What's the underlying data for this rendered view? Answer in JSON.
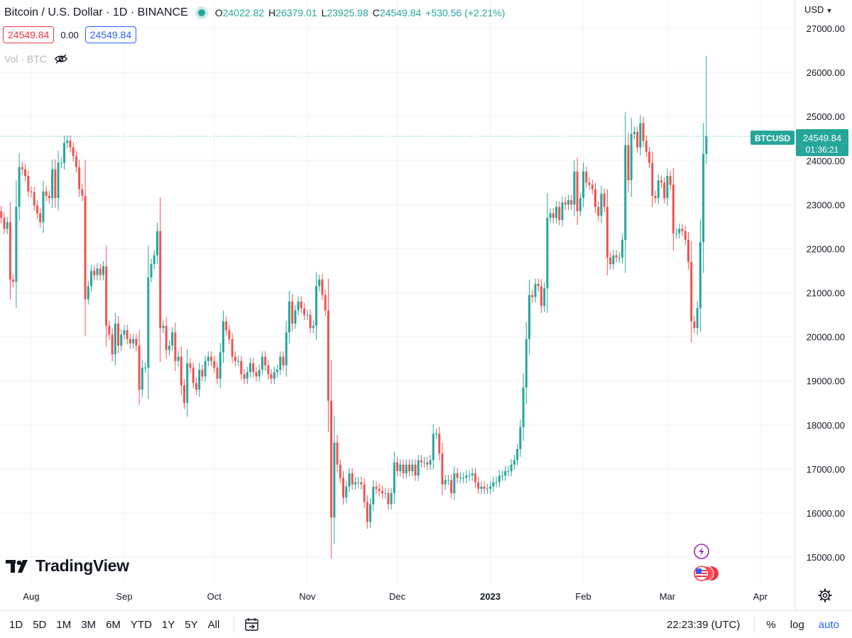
{
  "header": {
    "title": "Bitcoin / U.S. Dollar · 1D · BINANCE",
    "open_label": "O",
    "open": "24022.82",
    "high_label": "H",
    "high": "26379.01",
    "low_label": "L",
    "low": "23925.98",
    "close_label": "C",
    "close": "24549.84",
    "change": "+530.56 (+2.21%)",
    "sell_price": "24549.84",
    "spread": "0.00",
    "buy_price": "24549.84",
    "volume_label": "Vol · BTC",
    "currency": "USD"
  },
  "price_tag": {
    "symbol": "BTCUSD",
    "price": "24549.84",
    "countdown": "01:36:21"
  },
  "logo": "TradingView",
  "bottom_bar": {
    "ranges": [
      "1D",
      "5D",
      "1M",
      "3M",
      "6M",
      "YTD",
      "1Y",
      "5Y",
      "All"
    ],
    "time": "22:23:39 (UTC)",
    "percent": "%",
    "log": "log",
    "auto": "auto"
  },
  "colors": {
    "up": "#26a69a",
    "down": "#ef5350",
    "grid": "#f0f3fa",
    "text": "#131722",
    "accent": "#2962ff"
  },
  "chart_data": {
    "type": "candlestick",
    "title": "Bitcoin / U.S. Dollar · 1D · BINANCE",
    "ylim": [
      15000,
      27000
    ],
    "y_ticks": [
      "27000.00",
      "26000.00",
      "25000.00",
      "24000.00",
      "23000.00",
      "22000.00",
      "21000.00",
      "20000.00",
      "19000.00",
      "18000.00",
      "17000.00",
      "16000.00",
      "15000.00"
    ],
    "x_ticks": [
      {
        "label": "Aug",
        "date": "2022-08-01"
      },
      {
        "label": "Sep",
        "date": "2022-09-01"
      },
      {
        "label": "Oct",
        "date": "2022-10-01"
      },
      {
        "label": "Nov",
        "date": "2022-11-01"
      },
      {
        "label": "Dec",
        "date": "2022-12-01"
      },
      {
        "label": "2023",
        "date": "2023-01-01"
      },
      {
        "label": "Feb",
        "date": "2023-02-01"
      },
      {
        "label": "Mar",
        "date": "2023-03-01"
      },
      {
        "label": "Apr",
        "date": "2023-04-01"
      }
    ],
    "last_price": 24549.84,
    "grid": true,
    "closes": {
      "2022-07-22": 22700,
      "2022-07-23": 22450,
      "2022-07-24": 22600,
      "2022-07-25": 21300,
      "2022-07-26": 21250,
      "2022-07-27": 22950,
      "2022-07-28": 23850,
      "2022-07-29": 23800,
      "2022-07-30": 23650,
      "2022-07-31": 23300,
      "2022-08-01": 23280,
      "2022-08-02": 22980,
      "2022-08-03": 22800,
      "2022-08-04": 22600,
      "2022-08-05": 23300,
      "2022-08-06": 23200,
      "2022-08-07": 23150,
      "2022-08-08": 23800,
      "2022-08-09": 23150,
      "2022-08-10": 23950,
      "2022-08-11": 23950,
      "2022-08-12": 24400,
      "2022-08-13": 24450,
      "2022-08-14": 24300,
      "2022-08-15": 24100,
      "2022-08-16": 23850,
      "2022-08-17": 23350,
      "2022-08-18": 23200,
      "2022-08-19": 20850,
      "2022-08-20": 21150,
      "2022-08-21": 21500,
      "2022-08-22": 21400,
      "2022-08-23": 21550,
      "2022-08-24": 21400,
      "2022-08-25": 21600,
      "2022-08-26": 20250,
      "2022-08-27": 20050,
      "2022-08-28": 19600,
      "2022-08-29": 20300,
      "2022-08-30": 19800,
      "2022-08-31": 20050,
      "2022-09-01": 20150,
      "2022-09-02": 19950,
      "2022-09-03": 19850,
      "2022-09-04": 19950,
      "2022-09-05": 19800,
      "2022-09-06": 18800,
      "2022-09-07": 19300,
      "2022-09-08": 19300,
      "2022-09-09": 21350,
      "2022-09-10": 21650,
      "2022-09-11": 21850,
      "2022-09-12": 22400,
      "2022-09-13": 20200,
      "2022-09-14": 20250,
      "2022-09-15": 19700,
      "2022-09-16": 19800,
      "2022-09-17": 20100,
      "2022-09-18": 19450,
      "2022-09-19": 19550,
      "2022-09-20": 18900,
      "2022-09-21": 18500,
      "2022-09-22": 19400,
      "2022-09-23": 19300,
      "2022-09-24": 18950,
      "2022-09-25": 18800,
      "2022-09-26": 19250,
      "2022-09-27": 19100,
      "2022-09-28": 19450,
      "2022-09-29": 19550,
      "2022-09-30": 19450,
      "2022-10-01": 19300,
      "2022-10-02": 19050,
      "2022-10-03": 19650,
      "2022-10-04": 20350,
      "2022-10-05": 20150,
      "2022-10-06": 19950,
      "2022-10-07": 19550,
      "2022-10-08": 19450,
      "2022-10-09": 19450,
      "2022-10-10": 19150,
      "2022-10-11": 19050,
      "2022-10-12": 19200,
      "2022-10-13": 19400,
      "2022-10-14": 19200,
      "2022-10-15": 19100,
      "2022-10-16": 19250,
      "2022-10-17": 19550,
      "2022-10-18": 19350,
      "2022-10-19": 19150,
      "2022-10-20": 19050,
      "2022-10-21": 19200,
      "2022-10-22": 19250,
      "2022-10-23": 19550,
      "2022-10-24": 19350,
      "2022-10-25": 20100,
      "2022-10-26": 20800,
      "2022-10-27": 20300,
      "2022-10-28": 20600,
      "2022-10-29": 20800,
      "2022-10-30": 20650,
      "2022-10-31": 20500,
      "2022-11-01": 20500,
      "2022-11-02": 20200,
      "2022-11-03": 20250,
      "2022-11-04": 21150,
      "2022-11-05": 21300,
      "2022-11-06": 20950,
      "2022-11-07": 20600,
      "2022-11-08": 18550,
      "2022-11-09": 15900,
      "2022-11-10": 17600,
      "2022-11-11": 17100,
      "2022-11-12": 16800,
      "2022-11-13": 16350,
      "2022-11-14": 16600,
      "2022-11-15": 16900,
      "2022-11-16": 16650,
      "2022-11-17": 16700,
      "2022-11-18": 16700,
      "2022-11-19": 16650,
      "2022-11-20": 16250,
      "2022-11-21": 15800,
      "2022-11-22": 16200,
      "2022-11-23": 16600,
      "2022-11-24": 16550,
      "2022-11-25": 16500,
      "2022-11-26": 16450,
      "2022-11-27": 16450,
      "2022-11-28": 16200,
      "2022-11-29": 16450,
      "2022-11-30": 17150,
      "2022-12-01": 16950,
      "2022-12-02": 17100,
      "2022-12-03": 16900,
      "2022-12-04": 17100,
      "2022-12-05": 16950,
      "2022-12-06": 17100,
      "2022-12-07": 16850,
      "2022-12-08": 17200,
      "2022-12-09": 17150,
      "2022-12-10": 17150,
      "2022-12-11": 17100,
      "2022-12-12": 17200,
      "2022-12-13": 17800,
      "2022-12-14": 17800,
      "2022-12-15": 17350,
      "2022-12-16": 16650,
      "2022-12-17": 16750,
      "2022-12-18": 16750,
      "2022-12-19": 16450,
      "2022-12-20": 16900,
      "2022-12-21": 16800,
      "2022-12-22": 16800,
      "2022-12-23": 16800,
      "2022-12-24": 16850,
      "2022-12-25": 16850,
      "2022-12-26": 16900,
      "2022-12-27": 16700,
      "2022-12-28": 16550,
      "2022-12-29": 16600,
      "2022-12-30": 16550,
      "2022-12-31": 16550,
      "2023-01-01": 16600,
      "2023-01-02": 16700,
      "2023-01-03": 16700,
      "2023-01-04": 16850,
      "2023-01-05": 16850,
      "2023-01-06": 16950,
      "2023-01-07": 16950,
      "2023-01-08": 17100,
      "2023-01-09": 17200,
      "2023-01-10": 17450,
      "2023-01-11": 17950,
      "2023-01-12": 18850,
      "2023-01-13": 19950,
      "2023-01-14": 20950,
      "2023-01-15": 20900,
      "2023-01-16": 21200,
      "2023-01-17": 21150,
      "2023-01-18": 20700,
      "2023-01-19": 21100,
      "2023-01-20": 22700,
      "2023-01-21": 22800,
      "2023-01-22": 22700,
      "2023-01-23": 22950,
      "2023-01-24": 22650,
      "2023-01-25": 23050,
      "2023-01-26": 23000,
      "2023-01-27": 23100,
      "2023-01-28": 23000,
      "2023-01-29": 23750,
      "2023-01-30": 22850,
      "2023-01-31": 23150,
      "2023-02-01": 23750,
      "2023-02-02": 23500,
      "2023-02-03": 23450,
      "2023-02-04": 23350,
      "2023-02-05": 22950,
      "2023-02-06": 22750,
      "2023-02-07": 23250,
      "2023-02-08": 22950,
      "2023-02-09": 21800,
      "2023-02-10": 21650,
      "2023-02-11": 21850,
      "2023-02-12": 21800,
      "2023-02-13": 21800,
      "2023-02-14": 22200,
      "2023-02-15": 24350,
      "2023-02-16": 23550,
      "2023-02-17": 24600,
      "2023-02-18": 24650,
      "2023-02-19": 24300,
      "2023-02-20": 24850,
      "2023-02-21": 24450,
      "2023-02-22": 24200,
      "2023-02-23": 23950,
      "2023-02-24": 23200,
      "2023-02-25": 23150,
      "2023-02-26": 23550,
      "2023-02-27": 23500,
      "2023-02-28": 23150,
      "2023-03-01": 23650,
      "2023-03-02": 23450,
      "2023-03-03": 22350,
      "2023-03-04": 22350,
      "2023-03-05": 22450,
      "2023-03-06": 22400,
      "2023-03-07": 22200,
      "2023-03-08": 21700,
      "2023-03-09": 20350,
      "2023-03-10": 20200,
      "2023-03-11": 20650,
      "2023-03-12": 22150,
      "2023-03-13": 24150,
      "2023-03-14": 24549.84
    }
  }
}
